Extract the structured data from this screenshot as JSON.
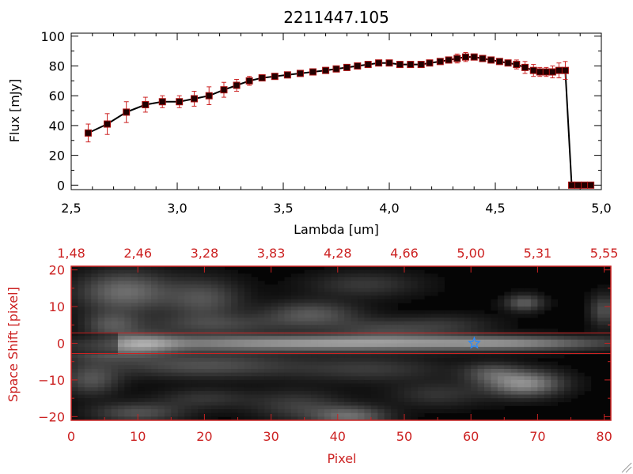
{
  "colors": {
    "axis_black": "#000000",
    "accent_red": "#cc2222",
    "marker_dark": "#220000",
    "marker_border": "#aa1111",
    "star_blue": "#2a8cff"
  },
  "chart_data": [
    {
      "type": "line",
      "title": "2211447.105",
      "xlabel": "Lambda [um]",
      "ylabel": "Flux [mJy]",
      "xlim": [
        2.5,
        5.0
      ],
      "ylim": [
        -3,
        102
      ],
      "xticks": [
        "2.5",
        "3.0",
        "3.5",
        "4.0",
        "4.5",
        "5.0"
      ],
      "yticks": [
        "0",
        "20",
        "40",
        "60",
        "80",
        "100"
      ],
      "grid": false,
      "series": [
        {
          "x": [
            2.58,
            2.67,
            2.76,
            2.85,
            2.93,
            3.01,
            3.08,
            3.15,
            3.22,
            3.28,
            3.34,
            3.4,
            3.46,
            3.52,
            3.58,
            3.64,
            3.7,
            3.75,
            3.8,
            3.85,
            3.9,
            3.95,
            4.0,
            4.05,
            4.1,
            4.15,
            4.19,
            4.24,
            4.28,
            4.32,
            4.36,
            4.4,
            4.44,
            4.48,
            4.52,
            4.56,
            4.6,
            4.64,
            4.68,
            4.71,
            4.74,
            4.77,
            4.8,
            4.83,
            4.86,
            4.89,
            4.92,
            4.95
          ],
          "y": [
            35,
            41,
            49,
            54,
            56,
            56,
            58,
            60,
            64,
            67,
            70,
            72,
            73,
            74,
            75,
            76,
            77,
            78,
            79,
            80,
            81,
            82,
            82,
            81,
            81,
            81,
            82,
            83,
            84,
            85,
            86,
            86,
            85,
            84,
            83,
            82,
            81,
            79,
            77,
            76,
            76,
            76,
            77,
            77,
            0,
            0,
            0,
            0
          ],
          "err": [
            6,
            7,
            7,
            5,
            4,
            4,
            5,
            6,
            5,
            4,
            3,
            2,
            2,
            2,
            2,
            2,
            2,
            2,
            2,
            2,
            2,
            2,
            2,
            2,
            2,
            2,
            2,
            2,
            2,
            3,
            3,
            2,
            2,
            2,
            2,
            2,
            3,
            4,
            4,
            3,
            3,
            4,
            5,
            6,
            0,
            0,
            0,
            0
          ]
        }
      ]
    },
    {
      "type": "heatmap",
      "xlabel": "Pixel",
      "ylabel": "Space Shift [pixel]",
      "xlim": [
        0,
        81
      ],
      "ylim": [
        -21,
        21
      ],
      "xticks": [
        "0",
        "10",
        "20",
        "30",
        "40",
        "50",
        "60",
        "70",
        "80"
      ],
      "yticks": [
        "-20",
        "-10",
        "0",
        "10",
        "20"
      ],
      "top_axis_ticks": [
        "1.48",
        "2.46",
        "3.28",
        "3.83",
        "4.28",
        "4.66",
        "5.00",
        "5.31",
        "5.55"
      ],
      "extraction_aperture": [
        -2.8,
        2.8
      ],
      "marker": {
        "shape": "star",
        "x": 60.5,
        "y": 0
      },
      "colormap": "grayscale",
      "blobs": [
        {
          "x": 40,
          "y": 0,
          "sx": 26,
          "sy": 1.5,
          "v": 0.62
        },
        {
          "x": 11,
          "y": 0,
          "sx": 3.5,
          "sy": 2.2,
          "v": 0.3
        },
        {
          "x": 67,
          "y": 0,
          "sx": 8,
          "sy": 1.3,
          "v": 0.2
        },
        {
          "x": 5,
          "y": -2.5,
          "sx": 5,
          "sy": 2,
          "v": 0.22
        },
        {
          "x": 8,
          "y": 14,
          "sx": 5,
          "sy": 4,
          "v": 0.42
        },
        {
          "x": 6,
          "y": 5,
          "sx": 3,
          "sy": 2.5,
          "v": 0.28
        },
        {
          "x": 20,
          "y": 12,
          "sx": 4,
          "sy": 4,
          "v": 0.3
        },
        {
          "x": 36,
          "y": 8,
          "sx": 5,
          "sy": 2.5,
          "v": 0.32
        },
        {
          "x": 22,
          "y": 5,
          "sx": 8,
          "sy": 2,
          "v": 0.22
        },
        {
          "x": 47,
          "y": 4,
          "sx": 6,
          "sy": 2,
          "v": 0.22
        },
        {
          "x": 44,
          "y": 16,
          "sx": 6,
          "sy": 2.5,
          "v": 0.2
        },
        {
          "x": 57,
          "y": 5,
          "sx": 5,
          "sy": 2,
          "v": 0.15
        },
        {
          "x": 68,
          "y": 11,
          "sx": 2,
          "sy": 1.6,
          "v": 0.35
        },
        {
          "x": 80,
          "y": 9,
          "sx": 1.5,
          "sy": 3,
          "v": 0.3
        },
        {
          "x": 20,
          "y": -6,
          "sx": 10,
          "sy": 2.5,
          "v": 0.3
        },
        {
          "x": 45,
          "y": -7,
          "sx": 8,
          "sy": 2.5,
          "v": 0.2
        },
        {
          "x": 3,
          "y": -10,
          "sx": 3,
          "sy": 3,
          "v": 0.3
        },
        {
          "x": 10,
          "y": -19,
          "sx": 5,
          "sy": 2,
          "v": 0.3
        },
        {
          "x": 20,
          "y": -15,
          "sx": 5,
          "sy": 2,
          "v": 0.18
        },
        {
          "x": 34,
          "y": -17,
          "sx": 5,
          "sy": 3,
          "v": 0.22
        },
        {
          "x": 42,
          "y": -20,
          "sx": 4,
          "sy": 2,
          "v": 0.4
        },
        {
          "x": 68,
          "y": -11,
          "sx": 4,
          "sy": 2.5,
          "v": 0.55
        },
        {
          "x": 63,
          "y": -8,
          "sx": 3,
          "sy": 2,
          "v": 0.25
        },
        {
          "x": 55,
          "y": -14,
          "sx": 5,
          "sy": 2.5,
          "v": 0.18
        }
      ]
    }
  ]
}
